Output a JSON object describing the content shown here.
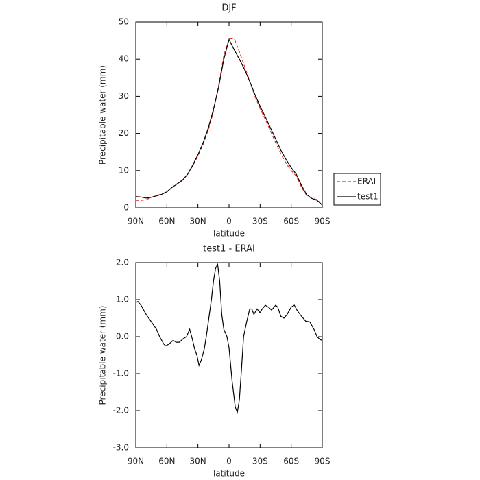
{
  "chart_data": [
    {
      "type": "line",
      "title": "DJF",
      "xlabel": "latitude",
      "ylabel": "Precipitable water (mm)",
      "x": [
        90,
        85,
        80,
        75,
        70,
        65,
        60,
        55,
        50,
        45,
        40,
        35,
        30,
        25,
        20,
        15,
        10,
        5,
        0,
        -5,
        -10,
        -15,
        -20,
        -25,
        -30,
        -35,
        -40,
        -45,
        -50,
        -55,
        -60,
        -65,
        -70,
        -75,
        -80,
        -85,
        -90
      ],
      "series": [
        {
          "name": "ERAI",
          "color": "#e8261c",
          "dashed": true,
          "values": [
            2.0,
            2.0,
            2.2,
            2.8,
            3.3,
            3.7,
            4.3,
            5.5,
            6.5,
            7.5,
            9.0,
            11.3,
            14.0,
            17.0,
            21.0,
            26.0,
            33.0,
            41.0,
            45.5,
            45.5,
            42.0,
            38.0,
            34.0,
            30.0,
            26.7,
            23.8,
            20.7,
            17.5,
            14.5,
            12.0,
            10.0,
            8.5,
            5.5,
            3.3,
            2.5,
            2.2,
            0.7
          ]
        },
        {
          "name": "test1",
          "color": "#000000",
          "dashed": false,
          "values": [
            3.0,
            2.9,
            2.6,
            2.8,
            3.2,
            3.6,
            4.3,
            5.5,
            6.4,
            7.4,
            9.0,
            11.5,
            14.3,
            17.5,
            21.5,
            26.5,
            32.5,
            40.0,
            45.3,
            42.5,
            40.0,
            37.2,
            34.0,
            30.5,
            27.3,
            24.5,
            21.5,
            18.5,
            15.5,
            13.0,
            10.8,
            9.0,
            6.0,
            3.5,
            2.5,
            2.0,
            0.7
          ]
        }
      ],
      "xlim": [
        90,
        -90
      ],
      "xticks": [
        {
          "value": 90,
          "label": "90N"
        },
        {
          "value": 60,
          "label": "60N"
        },
        {
          "value": 30,
          "label": "30N"
        },
        0,
        {
          "value": -30,
          "label": "30S"
        },
        {
          "value": -60,
          "label": "60S"
        },
        {
          "value": -90,
          "label": "90S"
        }
      ],
      "ylim": [
        0,
        50
      ],
      "yticks": [
        0,
        10,
        20,
        30,
        40,
        50
      ],
      "legend": "right"
    },
    {
      "type": "line",
      "title": "test1 - ERAI",
      "xlabel": "latitude",
      "ylabel": "Precipitable water (mm)",
      "x": [
        90,
        88,
        85,
        80,
        75,
        70,
        67,
        63,
        61,
        58,
        54,
        51,
        48,
        44,
        41,
        38,
        36,
        33,
        31,
        29,
        27,
        24,
        22,
        20,
        17,
        15,
        13,
        11,
        9,
        7,
        5,
        2,
        0,
        -3,
        -6,
        -8,
        -10,
        -12,
        -14,
        -17,
        -20,
        -22,
        -24,
        -27,
        -30,
        -32,
        -35,
        -38,
        -41,
        -45,
        -47,
        -50,
        -53,
        -56,
        -60,
        -63,
        -66,
        -70,
        -74,
        -78,
        -82,
        -85,
        -88,
        -90
      ],
      "values": [
        0.92,
        0.95,
        0.85,
        0.6,
        0.4,
        0.2,
        0.0,
        -0.2,
        -0.25,
        -0.2,
        -0.1,
        -0.15,
        -0.15,
        -0.05,
        0.0,
        0.2,
        0.0,
        -0.35,
        -0.5,
        -0.78,
        -0.65,
        -0.35,
        0.0,
        0.4,
        1.0,
        1.5,
        1.85,
        1.95,
        1.5,
        0.6,
        0.2,
        0.0,
        -0.3,
        -1.2,
        -1.9,
        -2.05,
        -1.7,
        -0.9,
        0.0,
        0.4,
        0.75,
        0.75,
        0.6,
        0.75,
        0.65,
        0.75,
        0.85,
        0.8,
        0.72,
        0.85,
        0.8,
        0.55,
        0.5,
        0.6,
        0.8,
        0.85,
        0.7,
        0.55,
        0.42,
        0.4,
        0.2,
        0.0,
        -0.08,
        -0.1
      ],
      "color": "#000000",
      "xlim": [
        90,
        -90
      ],
      "xticks": [
        {
          "value": 90,
          "label": "90N"
        },
        {
          "value": 60,
          "label": "60N"
        },
        {
          "value": 30,
          "label": "30N"
        },
        0,
        {
          "value": -30,
          "label": "30S"
        },
        {
          "value": -60,
          "label": "60S"
        },
        {
          "value": -90,
          "label": "90S"
        }
      ],
      "ylim": [
        -3,
        2
      ],
      "yticks": [
        {
          "value": 2,
          "label": "2.0"
        },
        {
          "value": 1,
          "label": "1.0"
        },
        {
          "value": 0,
          "label": "0.0"
        },
        {
          "value": -1,
          "label": "-1.0"
        },
        {
          "value": -2,
          "label": "-2.0"
        },
        {
          "value": -3,
          "label": "-3.0"
        }
      ]
    }
  ]
}
